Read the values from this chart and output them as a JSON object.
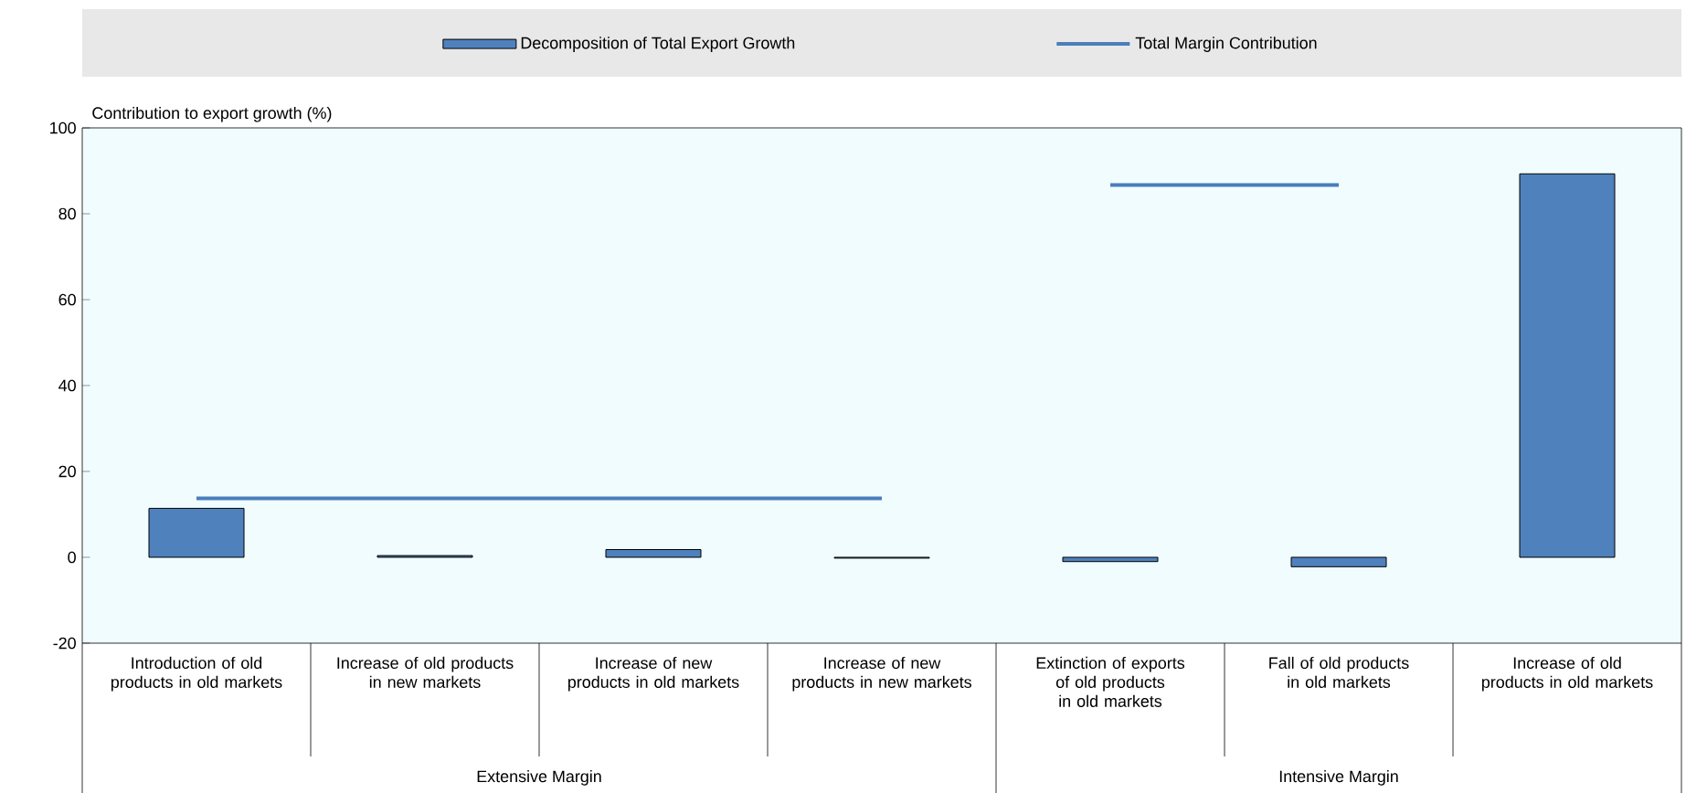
{
  "chart_data": {
    "type": "bar",
    "ylabel": "Contribution to export growth  (%)",
    "categories": [
      "Introduction of old products in old markets",
      "Increase of old products in new markets",
      "Increase of new products in old markets",
      "Increase of new products in new markets",
      "Extinction of exports of old products in old markets",
      "Fall of old products in old markets",
      "Increase of old products in old markets"
    ],
    "series": [
      {
        "name": "Decomposition of Total Export Growth",
        "color": "#4f81bd",
        "values": [
          11.4,
          0.4,
          1.8,
          -0.2,
          -1.0,
          -2.2,
          89.3
        ]
      },
      {
        "name": "Total Margin Contribution",
        "type": "line",
        "color": "#4a7ebb",
        "values": [
          13.7,
          13.7,
          13.7,
          13.7,
          null,
          null,
          null
        ]
      },
      {
        "type": "line",
        "color": "#4a7ebb",
        "values": [
          null,
          null,
          null,
          null,
          86.7,
          86.7,
          null
        ]
      }
    ],
    "ylim": [
      -20,
      100
    ],
    "yticks": [
      -20,
      0,
      20,
      40,
      60,
      80,
      100
    ],
    "legend": "top",
    "marker": "none",
    "annotations": [
      "Extensive Margin",
      "Intensive Margin"
    ]
  }
}
